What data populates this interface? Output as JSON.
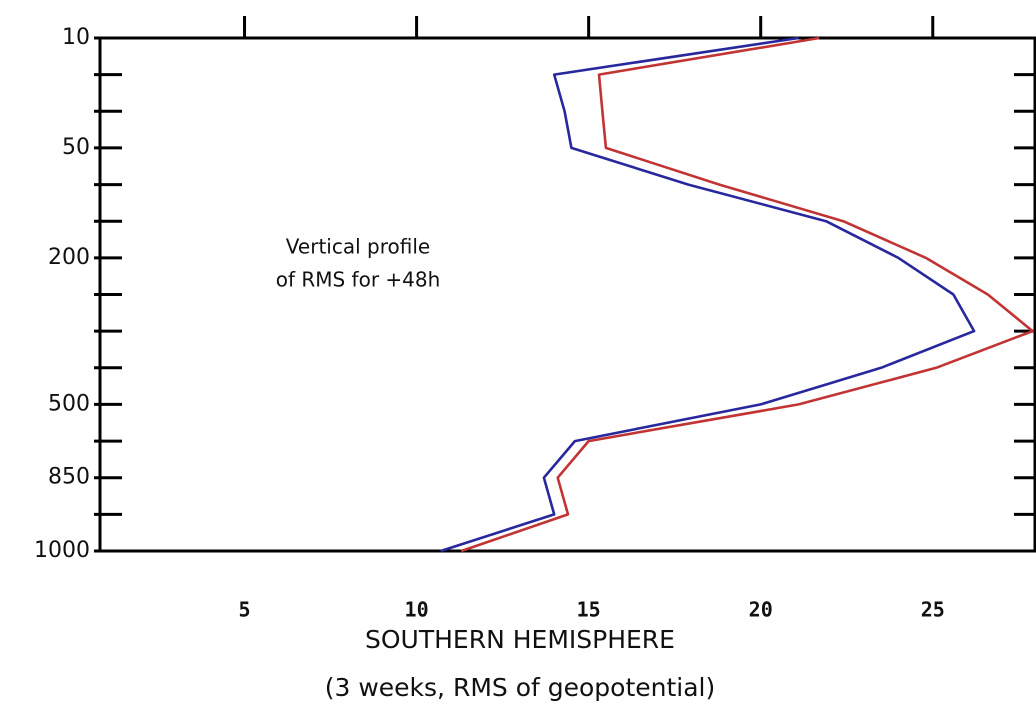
{
  "chart_data": {
    "type": "line",
    "orientation": "horizontal",
    "title": "SOUTHERN HEMISPHERE",
    "subtitle": "(3 weeks, RMS of geopotential)",
    "annotations": [
      "Vertical profile",
      "of RMS for +48h"
    ],
    "categories": [
      "10",
      null,
      null,
      "50",
      null,
      null,
      "200",
      null,
      null,
      null,
      "500",
      null,
      "850",
      null,
      "1000"
    ],
    "series": [
      {
        "color": "#c23434",
        "values": [
          21.7,
          15.3,
          15.4,
          15.5,
          18.8,
          22.4,
          24.8,
          26.6,
          27.9,
          25.1,
          21.1,
          15.0,
          14.1,
          14.4,
          11.3
        ]
      },
      {
        "color": "#28289e",
        "values": [
          21.1,
          14.0,
          14.3,
          14.5,
          17.9,
          21.9,
          24.0,
          25.6,
          26.2,
          23.5,
          20.0,
          14.6,
          13.7,
          14.0,
          10.7
        ]
      }
    ],
    "xlim": [
      0.8,
      28
    ],
    "xticks": [
      5,
      10,
      15,
      20,
      25
    ],
    "grid": false
  }
}
